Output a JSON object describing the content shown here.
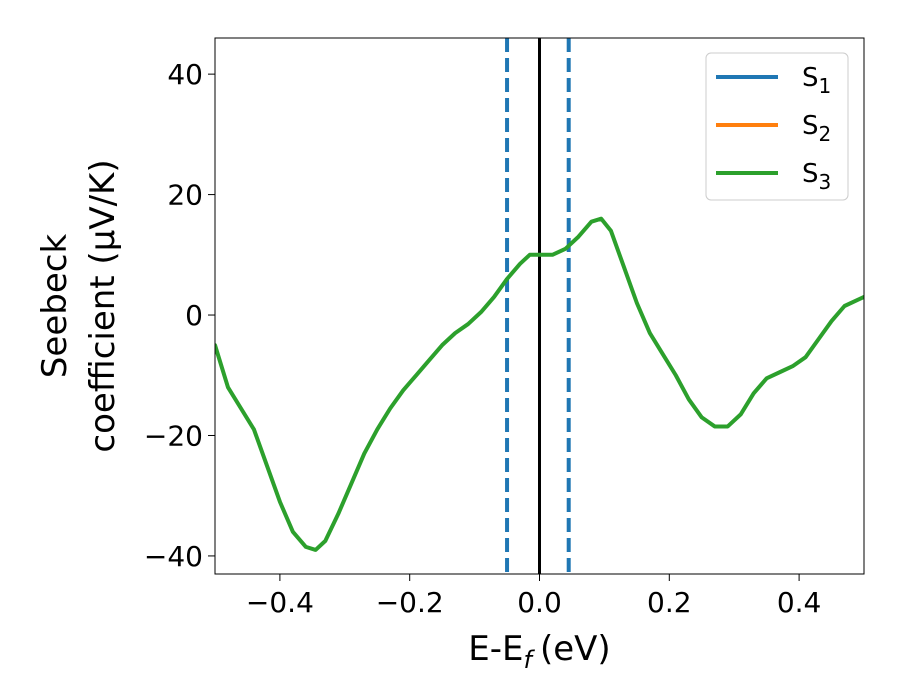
{
  "chart_data": {
    "type": "line",
    "xlabel": "E-E",
    "xlabel_sub": "f",
    "xlabel_unit": "(eV)",
    "ylabel_line1": "Seebeck",
    "ylabel_line2": "coefficient  (μV/K)",
    "xlim": [
      -0.5,
      0.5
    ],
    "ylim": [
      -43,
      46
    ],
    "x_ticks": [
      -0.4,
      -0.2,
      0.0,
      0.2,
      0.4
    ],
    "x_tick_labels": [
      "−0.4",
      "−0.2",
      "0.0",
      "0.2",
      "0.4"
    ],
    "y_ticks": [
      -40,
      -20,
      0,
      20,
      40
    ],
    "y_tick_labels": [
      "−40",
      "−20",
      "0",
      "20",
      "40"
    ],
    "grid": false,
    "legend_position": "top-right",
    "vertical_lines": [
      {
        "x": 0.0,
        "style": "solid",
        "color": "#000000"
      },
      {
        "x": -0.05,
        "style": "dashed",
        "color": "#1f77b4"
      },
      {
        "x": 0.045,
        "style": "dashed",
        "color": "#1f77b4"
      }
    ],
    "series": [
      {
        "name": "S",
        "sub": "1",
        "color": "#1f77b4"
      },
      {
        "name": "S",
        "sub": "2",
        "color": "#ff7f0e"
      },
      {
        "name": "S",
        "sub": "3",
        "color": "#2ca02c",
        "points": [
          [
            -0.5,
            -5
          ],
          [
            -0.48,
            -12
          ],
          [
            -0.46,
            -15.5
          ],
          [
            -0.44,
            -19
          ],
          [
            -0.42,
            -25
          ],
          [
            -0.4,
            -31
          ],
          [
            -0.38,
            -36
          ],
          [
            -0.36,
            -38.5
          ],
          [
            -0.345,
            -39
          ],
          [
            -0.33,
            -37.5
          ],
          [
            -0.31,
            -33
          ],
          [
            -0.29,
            -28
          ],
          [
            -0.27,
            -23
          ],
          [
            -0.25,
            -19
          ],
          [
            -0.23,
            -15.5
          ],
          [
            -0.21,
            -12.5
          ],
          [
            -0.19,
            -10
          ],
          [
            -0.17,
            -7.5
          ],
          [
            -0.15,
            -5
          ],
          [
            -0.13,
            -3
          ],
          [
            -0.11,
            -1.5
          ],
          [
            -0.09,
            0.5
          ],
          [
            -0.07,
            3
          ],
          [
            -0.05,
            6
          ],
          [
            -0.03,
            8.5
          ],
          [
            -0.015,
            10
          ],
          [
            0.0,
            10
          ],
          [
            0.02,
            10
          ],
          [
            0.04,
            11
          ],
          [
            0.06,
            13
          ],
          [
            0.08,
            15.5
          ],
          [
            0.095,
            16
          ],
          [
            0.11,
            14
          ],
          [
            0.13,
            8
          ],
          [
            0.15,
            2
          ],
          [
            0.17,
            -3
          ],
          [
            0.19,
            -6.5
          ],
          [
            0.21,
            -10
          ],
          [
            0.23,
            -14
          ],
          [
            0.25,
            -17
          ],
          [
            0.27,
            -18.5
          ],
          [
            0.29,
            -18.5
          ],
          [
            0.31,
            -16.5
          ],
          [
            0.33,
            -13
          ],
          [
            0.35,
            -10.5
          ],
          [
            0.37,
            -9.5
          ],
          [
            0.39,
            -8.5
          ],
          [
            0.41,
            -7
          ],
          [
            0.43,
            -4
          ],
          [
            0.45,
            -1
          ],
          [
            0.47,
            1.5
          ],
          [
            0.49,
            2.5
          ],
          [
            0.5,
            3
          ]
        ]
      }
    ]
  }
}
